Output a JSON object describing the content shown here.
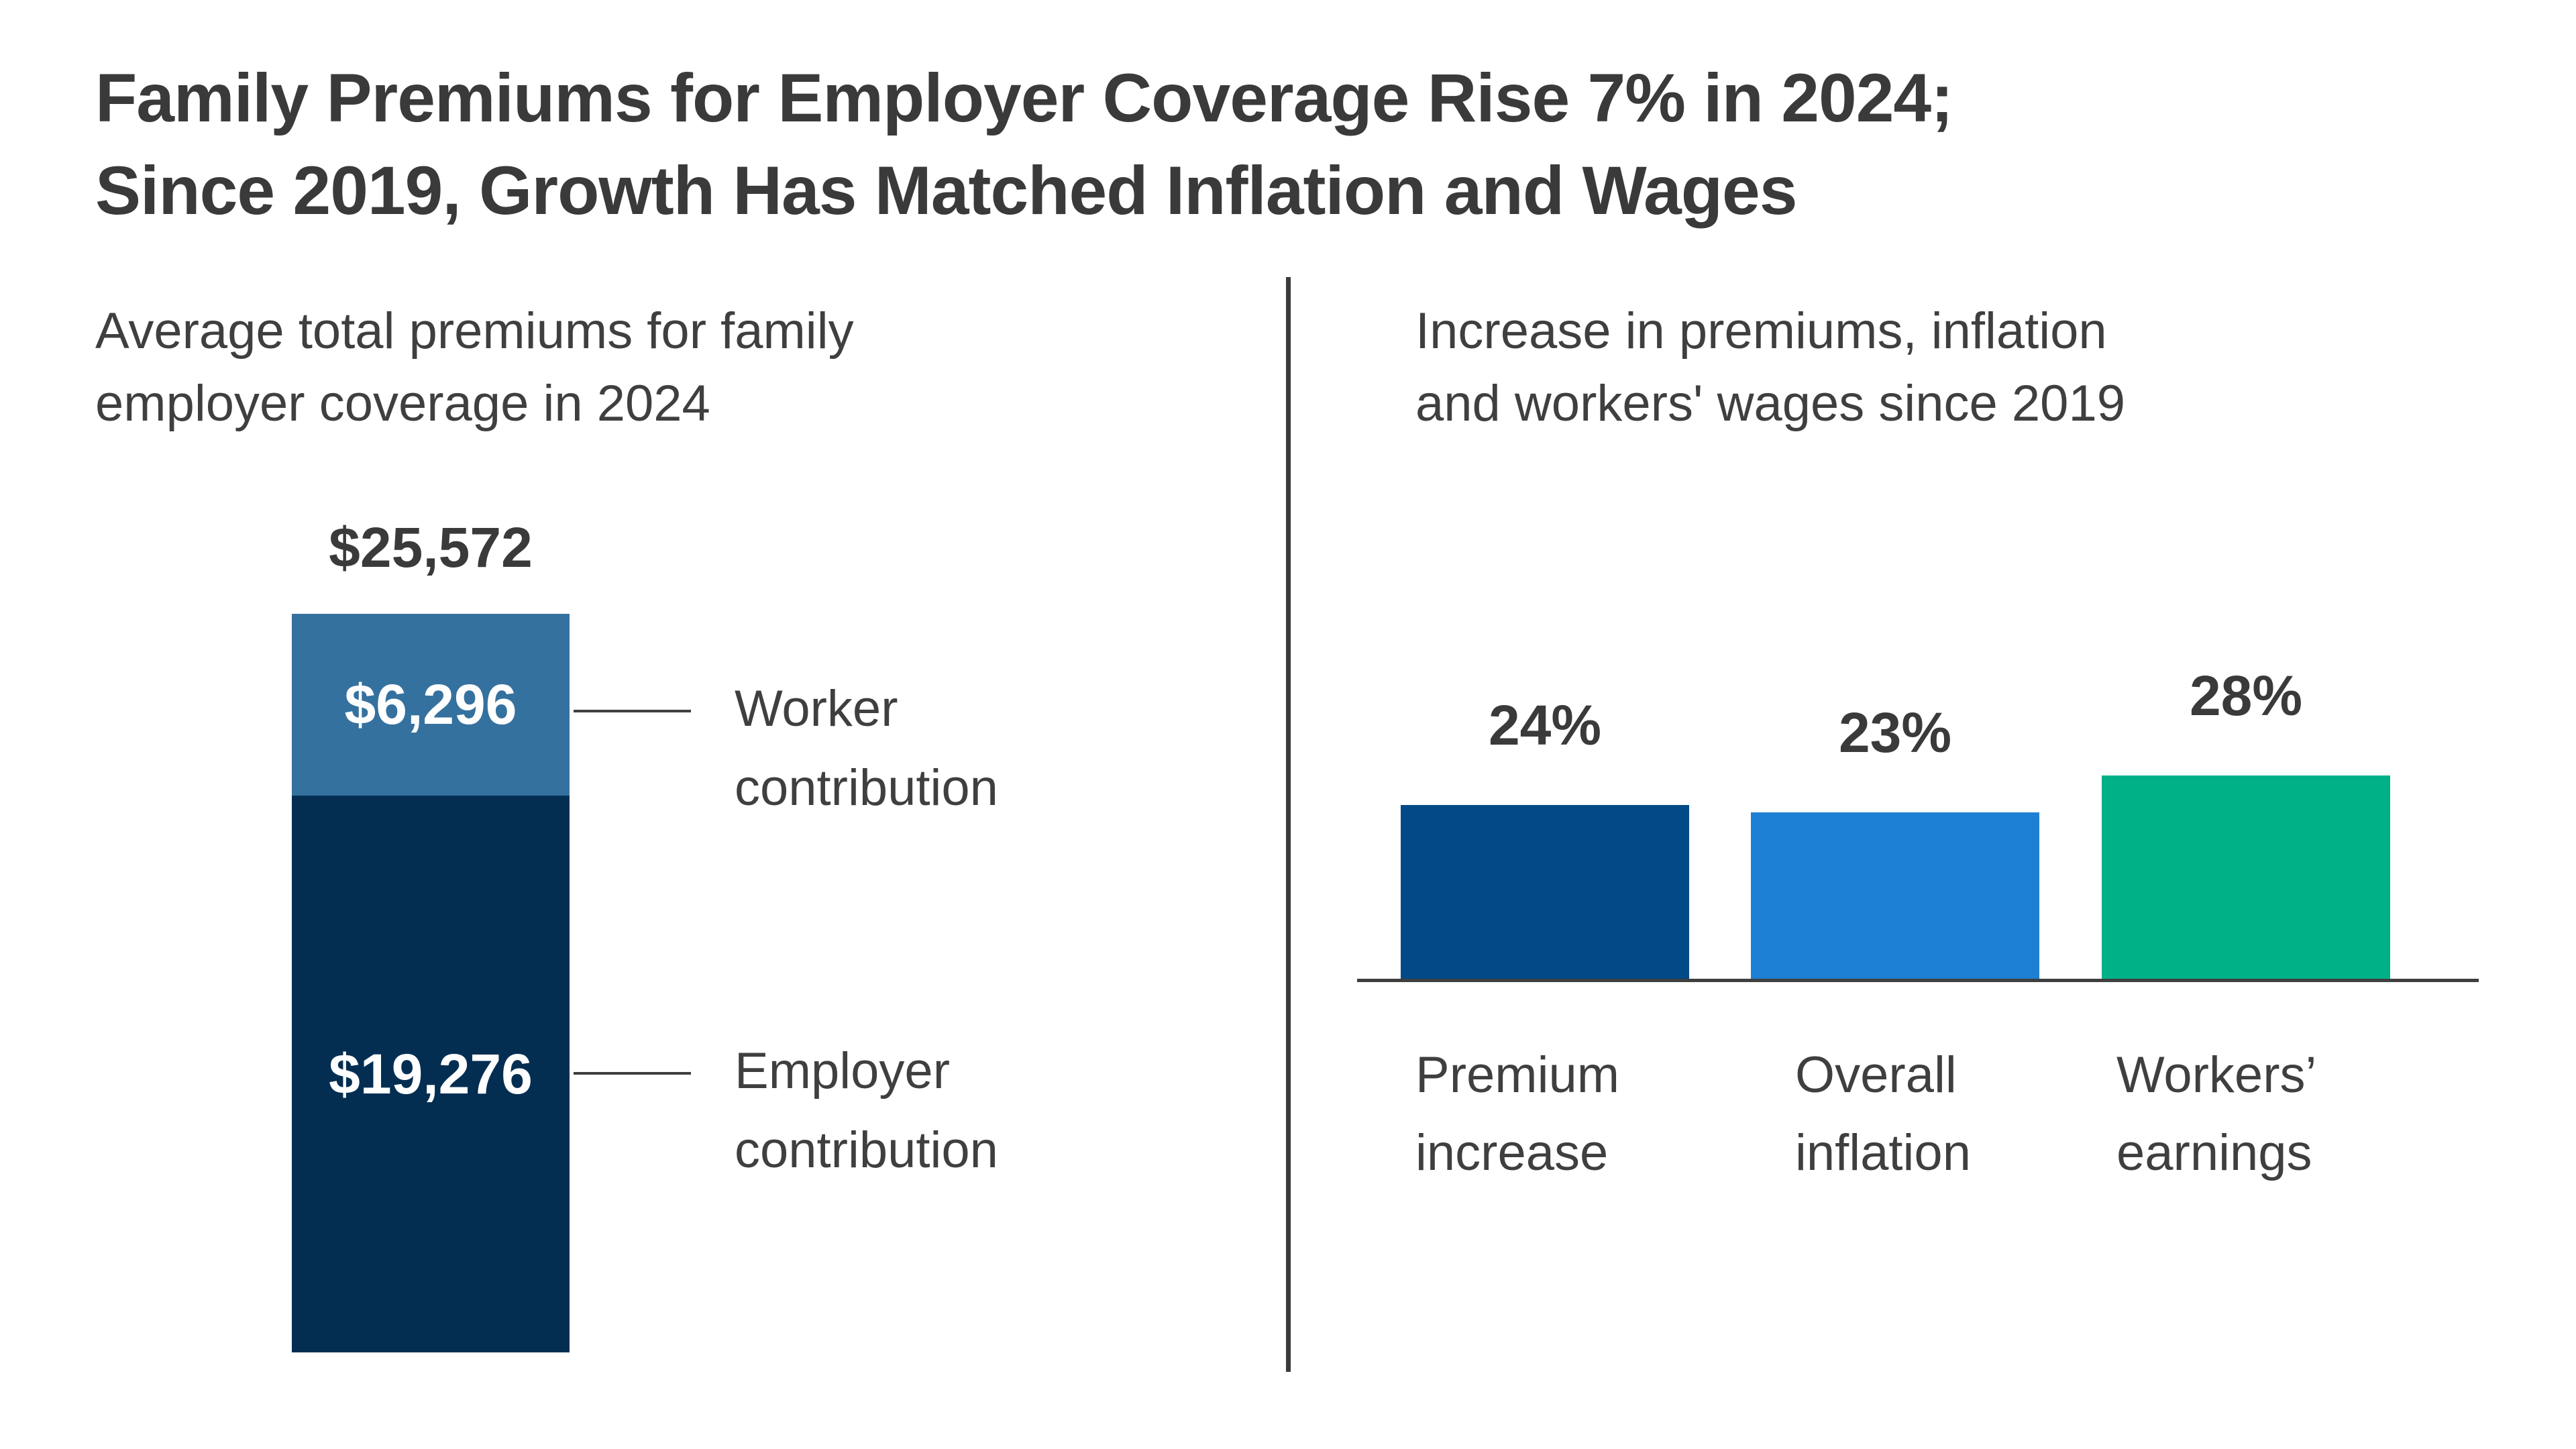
{
  "header": {
    "title": "Family Premiums for Employer Coverage Rise 7% in 2024; Since 2019, Growth Has Matched Inflation and Wages",
    "title_lines": [
      "Family Premiums for Employer Coverage Rise 7% in 2024;",
      "Since 2019, Growth Has Matched Inflation and Wages"
    ]
  },
  "left_panel": {
    "subtitle_lines": [
      "Average total premiums for family",
      "employer coverage in 2024"
    ],
    "total_label": "$25,572",
    "worker_value_label": "$6,296",
    "employer_value_label": "$19,276",
    "worker_label_lines": [
      "Worker",
      "contribution"
    ],
    "employer_label_lines": [
      "Employer",
      "contribution"
    ]
  },
  "right_panel": {
    "subtitle_lines": [
      "Increase in premiums, inflation",
      "and workers' wages since 2019"
    ],
    "pct_labels": [
      "24%",
      "23%",
      "28%"
    ],
    "category_lines": [
      [
        "Premium",
        "increase"
      ],
      [
        "Overall",
        "inflation"
      ],
      [
        "Workers’",
        "earnings"
      ]
    ]
  },
  "colors": {
    "worker_segment": "#35719f",
    "employer_segment": "#032e52",
    "premium_bar": "#014a87",
    "inflation_bar": "#1d80d2",
    "earnings_bar": "#00b187",
    "text_dark": "#3a3a3a",
    "line": "#3f3f3f"
  },
  "chart_data": [
    {
      "type": "bar",
      "variant": "stacked-single-column",
      "title": "Average total premiums for family employer coverage in 2024",
      "categories": [
        "Family employer coverage premium, 2024"
      ],
      "series": [
        {
          "name": "Worker contribution",
          "values": [
            6296
          ],
          "color": "#35719f",
          "value_label": "$6,296"
        },
        {
          "name": "Employer contribution",
          "values": [
            19276
          ],
          "color": "#032e52",
          "value_label": "$19,276"
        }
      ],
      "total": 25572,
      "total_label": "$25,572",
      "grid": false,
      "axes_visible": false
    },
    {
      "type": "bar",
      "title": "Increase in premiums, inflation and workers' wages since 2019",
      "categories": [
        "Premium increase",
        "Overall inflation",
        "Workers’ earnings"
      ],
      "values": [
        24,
        23,
        28
      ],
      "value_labels": [
        "24%",
        "23%",
        "28%"
      ],
      "colors": [
        "#014a87",
        "#1d80d2",
        "#00b187"
      ],
      "ylabel": "",
      "xlabel": "",
      "ylim": [
        0,
        30
      ],
      "grid": false,
      "legend": false,
      "baseline_visible": true
    }
  ]
}
